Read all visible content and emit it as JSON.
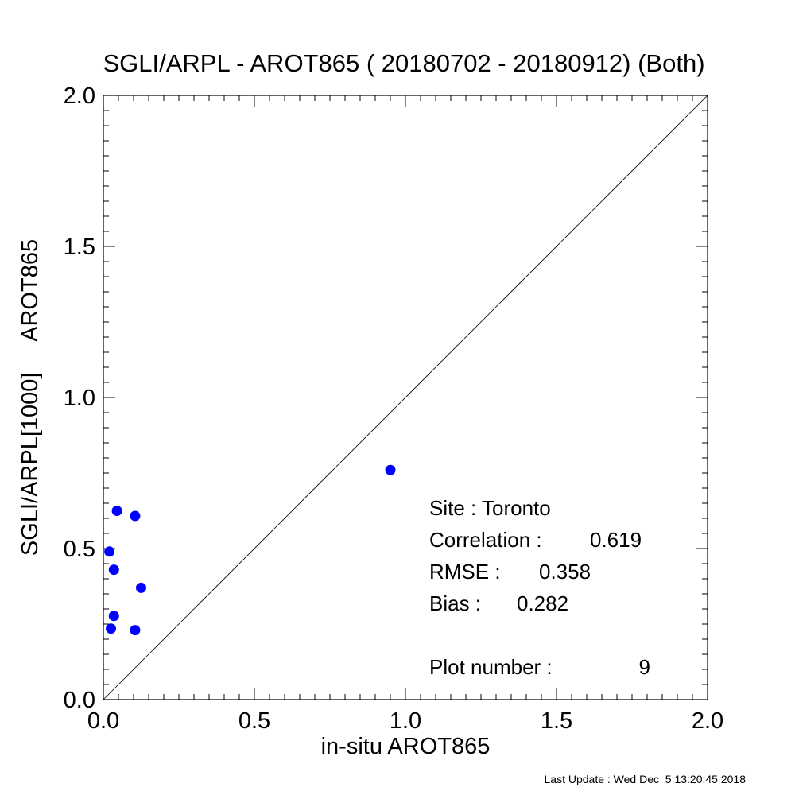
{
  "chart_data": {
    "type": "scatter",
    "title": "SGLI/ARPL - AROT865 ( 20180702 - 20180912) (Both)",
    "xlabel": "in-situ AROT865",
    "ylabel": "SGLI/ARPL[1000]     AROT865",
    "xlim": [
      0.0,
      2.0
    ],
    "ylim": [
      0.0,
      2.0
    ],
    "x_ticks": [
      "0.0",
      "0.5",
      "1.0",
      "1.5",
      "2.0"
    ],
    "y_ticks": [
      "0.0",
      "0.5",
      "1.0",
      "1.5",
      "2.0"
    ],
    "grid": false,
    "reference_line": "1:1",
    "point_color": "#0000ff",
    "points": [
      {
        "x": 0.045,
        "y": 0.625
      },
      {
        "x": 0.105,
        "y": 0.608
      },
      {
        "x": 0.02,
        "y": 0.49
      },
      {
        "x": 0.035,
        "y": 0.43
      },
      {
        "x": 0.125,
        "y": 0.37
      },
      {
        "x": 0.035,
        "y": 0.277
      },
      {
        "x": 0.025,
        "y": 0.235
      },
      {
        "x": 0.105,
        "y": 0.23
      },
      {
        "x": 0.95,
        "y": 0.76
      }
    ]
  },
  "stats": {
    "site": "Site : Toronto",
    "correlation_label": "Correlation :",
    "correlation_value": "0.619",
    "rmse_label": "RMSE :",
    "rmse_value": "0.358",
    "bias_label": "Bias :",
    "bias_value": "0.282",
    "plot_number_label": "Plot number :",
    "plot_number_value": "9"
  },
  "footer": "Last Update : Wed Dec  5 13:20:45 2018"
}
